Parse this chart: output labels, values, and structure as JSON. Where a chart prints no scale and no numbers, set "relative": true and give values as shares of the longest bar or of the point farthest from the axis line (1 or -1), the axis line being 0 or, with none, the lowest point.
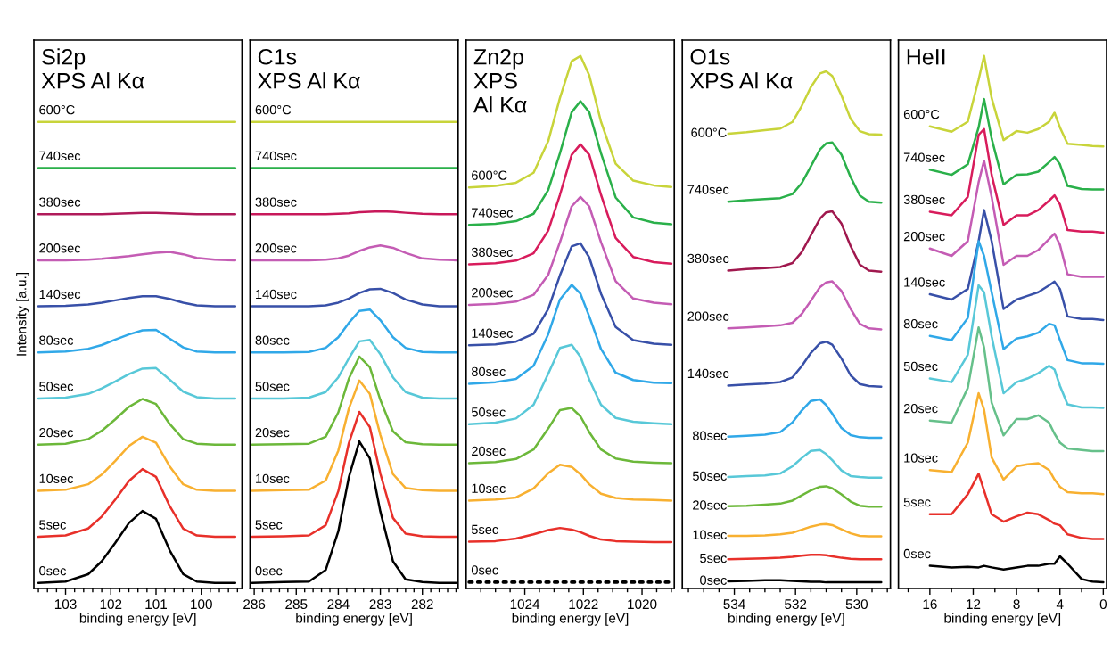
{
  "chart_data": [
    {
      "type": "line",
      "title": "Si2p\nXPS Al Kα",
      "xlabel": "binding energy [eV]",
      "ylabel": "Intensity [a.u.]",
      "relative": true,
      "tick_labels": "x",
      "xlim": [
        103.7,
        99.1
      ],
      "xticks": [
        103,
        102,
        101,
        100,
        {
          "value": 103.6,
          "label": null
        },
        {
          "value": 103.4,
          "label": null
        },
        {
          "value": 103.2,
          "label": null
        },
        {
          "value": 102.8,
          "label": null
        },
        {
          "value": 102.6,
          "label": null
        },
        {
          "value": 102.4,
          "label": null
        },
        {
          "value": 102.2,
          "label": null
        },
        {
          "value": 101.8,
          "label": null
        },
        {
          "value": 101.6,
          "label": null
        },
        {
          "value": 101.4,
          "label": null
        },
        {
          "value": 101.2,
          "label": null
        },
        {
          "value": 100.8,
          "label": null
        },
        {
          "value": 100.6,
          "label": null
        },
        {
          "value": 100.4,
          "label": null
        },
        {
          "value": 100.2,
          "label": null
        },
        {
          "value": 99.8,
          "label": null
        },
        {
          "value": 99.6,
          "label": null
        },
        {
          "value": 99.4,
          "label": null
        },
        {
          "value": 99.2,
          "label": null
        }
      ],
      "x": [
        103.6,
        103.0,
        102.5,
        102.2,
        101.9,
        101.6,
        101.3,
        101.0,
        100.7,
        100.4,
        100.1,
        99.7,
        99.25
      ],
      "series": [
        {
          "name": "600°C",
          "color": "#c8d43a",
          "values": [
            1.0,
            1.0,
            1.0,
            1.0,
            1.0,
            1.0,
            1.0,
            1.0,
            1.0,
            1.0,
            1.0,
            1.0,
            1.0
          ]
        },
        {
          "name": "740sec",
          "color": "#2ab04a",
          "values": [
            0.9,
            0.9,
            0.9,
            0.9,
            0.9,
            0.9,
            0.9,
            0.9,
            0.9,
            0.9,
            0.9,
            0.9,
            0.9
          ]
        },
        {
          "name": "380sec",
          "color": "#b01a5a",
          "values": [
            0.8,
            0.8,
            0.8,
            0.8,
            0.801,
            0.802,
            0.803,
            0.803,
            0.802,
            0.801,
            0.8,
            0.8,
            0.8
          ]
        },
        {
          "name": "200sec",
          "color": "#c45cb4",
          "values": [
            0.7,
            0.7,
            0.701,
            0.703,
            0.706,
            0.709,
            0.713,
            0.716,
            0.718,
            0.713,
            0.705,
            0.701,
            0.7
          ]
        },
        {
          "name": "140sec",
          "color": "#3850a8",
          "values": [
            0.6,
            0.601,
            0.604,
            0.608,
            0.613,
            0.618,
            0.622,
            0.622,
            0.616,
            0.608,
            0.602,
            0.6,
            0.6
          ]
        },
        {
          "name": "80sec",
          "color": "#30a8e8",
          "values": [
            0.5,
            0.502,
            0.508,
            0.516,
            0.528,
            0.539,
            0.548,
            0.549,
            0.53,
            0.511,
            0.502,
            0.5,
            0.5
          ]
        },
        {
          "name": "50sec",
          "color": "#58c8d8",
          "values": [
            0.4,
            0.402,
            0.41,
            0.422,
            0.437,
            0.453,
            0.465,
            0.466,
            0.441,
            0.415,
            0.403,
            0.4,
            0.4
          ]
        },
        {
          "name": "20sec",
          "color": "#6cb83a",
          "values": [
            0.3,
            0.302,
            0.312,
            0.33,
            0.355,
            0.382,
            0.399,
            0.388,
            0.345,
            0.312,
            0.302,
            0.3,
            0.3
          ]
        },
        {
          "name": "10sec",
          "color": "#f8b030",
          "values": [
            0.2,
            0.202,
            0.214,
            0.235,
            0.265,
            0.297,
            0.317,
            0.304,
            0.253,
            0.214,
            0.202,
            0.2,
            0.2
          ]
        },
        {
          "name": "5sec",
          "color": "#e8302a",
          "values": [
            0.1,
            0.103,
            0.118,
            0.144,
            0.181,
            0.221,
            0.247,
            0.23,
            0.167,
            0.118,
            0.103,
            0.1,
            0.1
          ]
        },
        {
          "name": "0sec",
          "color": "#000000",
          "values": [
            0,
            0.003,
            0.019,
            0.047,
            0.087,
            0.13,
            0.156,
            0.139,
            0.071,
            0.019,
            0.003,
            0,
            0
          ]
        }
      ]
    },
    {
      "type": "line",
      "title": "C1s\nXPS Al Kα",
      "xlabel": "binding energy [eV]",
      "relative": true,
      "tick_labels": "x",
      "xlim": [
        286.1,
        281.15
      ],
      "xticks": [
        286,
        285,
        284,
        283,
        282,
        {
          "value": 285.8,
          "label": null
        },
        {
          "value": 285.6,
          "label": null
        },
        {
          "value": 285.4,
          "label": null
        },
        {
          "value": 285.2,
          "label": null
        },
        {
          "value": 284.8,
          "label": null
        },
        {
          "value": 284.6,
          "label": null
        },
        {
          "value": 284.4,
          "label": null
        },
        {
          "value": 284.2,
          "label": null
        },
        {
          "value": 283.8,
          "label": null
        },
        {
          "value": 283.6,
          "label": null
        },
        {
          "value": 283.4,
          "label": null
        },
        {
          "value": 283.2,
          "label": null
        },
        {
          "value": 282.8,
          "label": null
        },
        {
          "value": 282.6,
          "label": null
        },
        {
          "value": 282.4,
          "label": null
        },
        {
          "value": 282.2,
          "label": null
        },
        {
          "value": 281.8,
          "label": null
        },
        {
          "value": 281.6,
          "label": null
        },
        {
          "value": 281.4,
          "label": null
        },
        {
          "value": 281.2,
          "label": null
        }
      ],
      "x": [
        286.05,
        285.3,
        284.7,
        284.3,
        284.0,
        283.75,
        283.5,
        283.25,
        283.0,
        282.7,
        282.4,
        282.0,
        281.6,
        281.2
      ],
      "series": [
        {
          "name": "600°C",
          "color": "#c8d43a",
          "values": [
            1.0,
            1.0,
            1.0,
            1.0,
            1.0,
            1.0,
            1.0,
            1.0,
            1.0,
            1.0,
            1.0,
            1.0,
            1.0,
            1.0
          ]
        },
        {
          "name": "740sec",
          "color": "#2ab04a",
          "values": [
            0.9,
            0.9,
            0.9,
            0.9,
            0.9,
            0.9,
            0.9,
            0.9,
            0.9,
            0.9,
            0.9,
            0.9,
            0.9,
            0.9
          ]
        },
        {
          "name": "380sec",
          "color": "#c8185a",
          "values": [
            0.8,
            0.8,
            0.8,
            0.8,
            0.801,
            0.802,
            0.804,
            0.805,
            0.806,
            0.805,
            0.803,
            0.801,
            0.8,
            0.8
          ]
        },
        {
          "name": "200sec",
          "color": "#c45cb4",
          "values": [
            0.7,
            0.7,
            0.7,
            0.701,
            0.704,
            0.71,
            0.72,
            0.728,
            0.732,
            0.727,
            0.716,
            0.704,
            0.701,
            0.7
          ]
        },
        {
          "name": "140sec",
          "color": "#3850a8",
          "values": [
            0.6,
            0.6,
            0.6,
            0.602,
            0.608,
            0.617,
            0.629,
            0.637,
            0.638,
            0.629,
            0.615,
            0.604,
            0.6,
            0.6
          ]
        },
        {
          "name": "80sec",
          "color": "#30a8e8",
          "values": [
            0.5,
            0.5,
            0.501,
            0.51,
            0.533,
            0.564,
            0.59,
            0.593,
            0.57,
            0.533,
            0.51,
            0.501,
            0.5,
            0.5
          ]
        },
        {
          "name": "50sec",
          "color": "#58c8d8",
          "values": [
            0.4,
            0.4,
            0.402,
            0.414,
            0.446,
            0.487,
            0.524,
            0.527,
            0.496,
            0.446,
            0.414,
            0.402,
            0.4,
            0.4
          ]
        },
        {
          "name": "20sec",
          "color": "#6cb83a",
          "values": [
            0.3,
            0.301,
            0.302,
            0.317,
            0.37,
            0.443,
            0.491,
            0.468,
            0.397,
            0.329,
            0.305,
            0.301,
            0.3,
            0.3
          ]
        },
        {
          "name": "10sec",
          "color": "#f8b030",
          "values": [
            0.2,
            0.201,
            0.202,
            0.222,
            0.287,
            0.378,
            0.439,
            0.41,
            0.321,
            0.236,
            0.206,
            0.201,
            0.2,
            0.2
          ]
        },
        {
          "name": "5sec",
          "color": "#e8302a",
          "values": [
            0.1,
            0.101,
            0.103,
            0.125,
            0.199,
            0.303,
            0.371,
            0.338,
            0.237,
            0.141,
            0.107,
            0.101,
            0.1,
            0.1
          ]
        },
        {
          "name": "0sec",
          "color": "#000000",
          "values": [
            0,
            0.002,
            0.003,
            0.028,
            0.112,
            0.229,
            0.307,
            0.27,
            0.155,
            0.047,
            0.008,
            0.002,
            0,
            0
          ]
        }
      ]
    },
    {
      "type": "line",
      "title": "Zn2p\nXPS\nAl Kα",
      "xlabel": "binding energy [eV]",
      "relative": true,
      "tick_labels": "x",
      "xlim": [
        1026.0,
        1018.9
      ],
      "xticks": [
        1024,
        1022,
        1020,
        {
          "value": 1025.5,
          "label": null
        },
        {
          "value": 1025,
          "label": null
        },
        {
          "value": 1024.5,
          "label": null
        },
        {
          "value": 1023.5,
          "label": null
        },
        {
          "value": 1023,
          "label": null
        },
        {
          "value": 1022.5,
          "label": null
        },
        {
          "value": 1021.5,
          "label": null
        },
        {
          "value": 1021,
          "label": null
        },
        {
          "value": 1020.5,
          "label": null
        },
        {
          "value": 1019.5,
          "label": null
        },
        {
          "value": 1019,
          "label": null
        }
      ],
      "x": [
        1025.9,
        1025.0,
        1024.3,
        1023.7,
        1023.2,
        1022.8,
        1022.4,
        1022.1,
        1021.8,
        1021.4,
        1020.9,
        1020.3,
        1019.6,
        1019.0
      ],
      "series": [
        {
          "name": "600°C",
          "color": "#c8d43a",
          "values": [
            0.75,
            0.753,
            0.759,
            0.778,
            0.838,
            0.92,
            0.99,
            1.0,
            0.963,
            0.875,
            0.795,
            0.763,
            0.754,
            0.751
          ]
        },
        {
          "name": "740sec",
          "color": "#2ab04a",
          "values": [
            0.679,
            0.681,
            0.686,
            0.7,
            0.745,
            0.815,
            0.893,
            0.914,
            0.893,
            0.815,
            0.731,
            0.693,
            0.683,
            0.68
          ]
        },
        {
          "name": "380sec",
          "color": "#d81c5c",
          "values": [
            0.604,
            0.606,
            0.611,
            0.625,
            0.668,
            0.736,
            0.812,
            0.832,
            0.812,
            0.736,
            0.654,
            0.618,
            0.608,
            0.605
          ]
        },
        {
          "name": "200sec",
          "color": "#c45cb4",
          "values": [
            0.527,
            0.529,
            0.533,
            0.546,
            0.584,
            0.646,
            0.714,
            0.732,
            0.714,
            0.646,
            0.572,
            0.539,
            0.531,
            0.528
          ]
        },
        {
          "name": "140sec",
          "color": "#3850a8",
          "values": [
            0.45,
            0.452,
            0.457,
            0.472,
            0.519,
            0.583,
            0.638,
            0.644,
            0.617,
            0.548,
            0.485,
            0.46,
            0.453,
            0.451
          ]
        },
        {
          "name": "80sec",
          "color": "#30a8e8",
          "values": [
            0.377,
            0.38,
            0.386,
            0.411,
            0.471,
            0.537,
            0.565,
            0.548,
            0.505,
            0.443,
            0.398,
            0.384,
            0.379,
            0.378
          ]
        },
        {
          "name": "50sec",
          "color": "#58c8d8",
          "values": [
            0.3,
            0.303,
            0.311,
            0.337,
            0.396,
            0.445,
            0.451,
            0.428,
            0.385,
            0.337,
            0.312,
            0.305,
            0.302,
            0.3
          ]
        },
        {
          "name": "20sec",
          "color": "#6cb83a",
          "values": [
            0.226,
            0.228,
            0.234,
            0.252,
            0.292,
            0.327,
            0.331,
            0.315,
            0.285,
            0.252,
            0.235,
            0.229,
            0.227,
            0.226
          ]
        },
        {
          "name": "10sec",
          "color": "#f8b030",
          "values": [
            0.155,
            0.157,
            0.161,
            0.178,
            0.207,
            0.223,
            0.219,
            0.205,
            0.186,
            0.168,
            0.16,
            0.157,
            0.156,
            0.155
          ]
        },
        {
          "name": "5sec",
          "color": "#e8302a",
          "values": [
            0.077,
            0.078,
            0.083,
            0.091,
            0.099,
            0.103,
            0.1,
            0.095,
            0.088,
            0.081,
            0.078,
            0.077,
            0.076,
            0.076
          ]
        },
        {
          "name": "0sec",
          "color": "#000000",
          "line_style": "dotted",
          "values": [
            0,
            0,
            0,
            0,
            0,
            0,
            0,
            0,
            0,
            0,
            0,
            0,
            0,
            0
          ]
        }
      ]
    },
    {
      "type": "line",
      "title": "O1s\nXPS Al Kα",
      "xlabel": "binding energy [eV]",
      "relative": true,
      "tick_labels": "x",
      "xlim": [
        535.7,
        528.9
      ],
      "xticks": [
        534,
        532,
        530,
        {
          "value": 535.5,
          "label": null
        },
        {
          "value": 535,
          "label": null
        },
        {
          "value": 534.5,
          "label": null
        },
        {
          "value": 533.5,
          "label": null
        },
        {
          "value": 533,
          "label": null
        },
        {
          "value": 532.5,
          "label": null
        },
        {
          "value": 531.5,
          "label": null
        },
        {
          "value": 531,
          "label": null
        },
        {
          "value": 530.5,
          "label": null
        },
        {
          "value": 529.5,
          "label": null
        },
        {
          "value": 529,
          "label": null
        }
      ],
      "x": [
        534.2,
        533.6,
        533.0,
        532.5,
        532.1,
        531.8,
        531.5,
        531.2,
        531.0,
        530.8,
        530.5,
        530.2,
        529.9,
        529.6,
        529.2
      ],
      "series": [
        {
          "name": "600°C",
          "color": "#c8d43a",
          "values": [
            0.878,
            0.881,
            0.885,
            0.888,
            0.901,
            0.932,
            0.969,
            0.996,
            1.0,
            0.991,
            0.953,
            0.907,
            0.883,
            0.877,
            0.876
          ]
        },
        {
          "name": "740sec",
          "color": "#2ab04a",
          "values": [
            0.745,
            0.748,
            0.75,
            0.752,
            0.76,
            0.781,
            0.814,
            0.847,
            0.859,
            0.861,
            0.837,
            0.793,
            0.757,
            0.745,
            0.743
          ]
        },
        {
          "name": "380sec",
          "color": "#a0184e",
          "values": [
            0.61,
            0.613,
            0.615,
            0.617,
            0.625,
            0.646,
            0.679,
            0.712,
            0.724,
            0.726,
            0.702,
            0.658,
            0.622,
            0.61,
            0.608
          ]
        },
        {
          "name": "200sec",
          "color": "#c45cb4",
          "values": [
            0.497,
            0.499,
            0.501,
            0.503,
            0.508,
            0.525,
            0.551,
            0.578,
            0.587,
            0.589,
            0.57,
            0.535,
            0.506,
            0.497,
            0.495
          ]
        },
        {
          "name": "140sec",
          "color": "#3850a8",
          "values": [
            0.385,
            0.387,
            0.389,
            0.392,
            0.401,
            0.423,
            0.449,
            0.468,
            0.471,
            0.465,
            0.438,
            0.405,
            0.388,
            0.384,
            0.383
          ]
        },
        {
          "name": "80sec",
          "color": "#30a8e8",
          "values": [
            0.285,
            0.287,
            0.289,
            0.294,
            0.313,
            0.336,
            0.355,
            0.358,
            0.347,
            0.33,
            0.302,
            0.288,
            0.284,
            0.283,
            0.283
          ]
        },
        {
          "name": "50sec",
          "color": "#58c8d8",
          "values": [
            0.206,
            0.208,
            0.209,
            0.213,
            0.227,
            0.243,
            0.257,
            0.259,
            0.251,
            0.239,
            0.219,
            0.208,
            0.206,
            0.205,
            0.205
          ]
        },
        {
          "name": "20sec",
          "color": "#6cb83a",
          "values": [
            0.149,
            0.15,
            0.152,
            0.154,
            0.16,
            0.17,
            0.18,
            0.187,
            0.188,
            0.184,
            0.172,
            0.158,
            0.15,
            0.148,
            0.148
          ]
        },
        {
          "name": "10sec",
          "color": "#f8b030",
          "values": [
            0.091,
            0.091,
            0.092,
            0.094,
            0.097,
            0.103,
            0.109,
            0.113,
            0.114,
            0.112,
            0.104,
            0.096,
            0.091,
            0.09,
            0.09
          ]
        },
        {
          "name": "5sec",
          "color": "#e8302a",
          "values": [
            0.045,
            0.046,
            0.047,
            0.048,
            0.05,
            0.052,
            0.054,
            0.054,
            0.053,
            0.051,
            0.048,
            0.046,
            0.045,
            0.045,
            0.045
          ]
        },
        {
          "name": "0sec",
          "color": "#000000",
          "values": [
            0.002,
            0.003,
            0.004,
            0.004,
            0.003,
            0.002,
            0.001,
            0.001,
            0,
            0,
            0,
            0,
            0,
            0,
            0
          ]
        }
      ]
    },
    {
      "type": "line",
      "title": "HeII",
      "xlabel": "binding energy [eV]",
      "relative": true,
      "tick_labels": "x",
      "xlim": [
        18.9,
        -0.3
      ],
      "xticks": [
        16,
        12,
        8,
        4,
        0,
        {
          "value": 18,
          "label": null
        },
        {
          "value": 14,
          "label": null
        },
        {
          "value": 10,
          "label": null
        },
        {
          "value": 6,
          "label": null
        },
        {
          "value": 2,
          "label": null
        }
      ],
      "x": [
        16,
        14,
        12.5,
        11.5,
        11.0,
        10.3,
        9.2,
        8,
        7,
        6,
        5,
        4.5,
        4,
        3.3,
        2,
        1,
        0
      ],
      "series": [
        {
          "name": "600°C",
          "color": "#c8d43a",
          "values": [
            0.866,
            0.856,
            0.875,
            0.955,
            1.0,
            0.92,
            0.84,
            0.857,
            0.854,
            0.861,
            0.875,
            0.892,
            0.864,
            0.833,
            0.831,
            0.829,
            0.828
          ]
        },
        {
          "name": "740sec",
          "color": "#2ab04a",
          "values": [
            0.784,
            0.774,
            0.794,
            0.864,
            0.918,
            0.843,
            0.756,
            0.774,
            0.775,
            0.78,
            0.798,
            0.808,
            0.794,
            0.753,
            0.747,
            0.746,
            0.746
          ]
        },
        {
          "name": "380sec",
          "color": "#d81c5c",
          "values": [
            0.704,
            0.697,
            0.732,
            0.85,
            0.861,
            0.774,
            0.679,
            0.697,
            0.697,
            0.707,
            0.725,
            0.735,
            0.718,
            0.669,
            0.666,
            0.666,
            0.664
          ]
        },
        {
          "name": "200sec",
          "color": "#c45cb4",
          "values": [
            0.634,
            0.62,
            0.648,
            0.76,
            0.801,
            0.732,
            0.603,
            0.62,
            0.62,
            0.631,
            0.652,
            0.662,
            0.641,
            0.585,
            0.58,
            0.58,
            0.58
          ]
        },
        {
          "name": "140sec",
          "color": "#3850a8",
          "values": [
            0.547,
            0.537,
            0.557,
            0.648,
            0.707,
            0.648,
            0.519,
            0.537,
            0.544,
            0.551,
            0.564,
            0.571,
            0.557,
            0.505,
            0.5,
            0.5,
            0.498
          ]
        },
        {
          "name": "80sec",
          "color": "#30a8e8",
          "values": [
            0.468,
            0.46,
            0.502,
            0.648,
            0.62,
            0.551,
            0.443,
            0.463,
            0.467,
            0.474,
            0.491,
            0.488,
            0.46,
            0.422,
            0.416,
            0.416,
            0.415
          ]
        },
        {
          "name": "50sec",
          "color": "#58c8d8",
          "values": [
            0.387,
            0.38,
            0.432,
            0.564,
            0.551,
            0.467,
            0.359,
            0.38,
            0.387,
            0.397,
            0.411,
            0.404,
            0.373,
            0.338,
            0.332,
            0.332,
            0.331
          ]
        },
        {
          "name": "20sec",
          "color": "#66c08a",
          "values": [
            0.307,
            0.303,
            0.369,
            0.484,
            0.446,
            0.341,
            0.279,
            0.31,
            0.31,
            0.317,
            0.303,
            0.282,
            0.265,
            0.254,
            0.251,
            0.249,
            0.249
          ]
        },
        {
          "name": "10sec",
          "color": "#f8b030",
          "values": [
            0.213,
            0.209,
            0.265,
            0.359,
            0.328,
            0.237,
            0.195,
            0.22,
            0.224,
            0.226,
            0.213,
            0.195,
            0.181,
            0.171,
            0.169,
            0.169,
            0.167
          ]
        },
        {
          "name": "5sec",
          "color": "#e8302a",
          "values": [
            0.129,
            0.129,
            0.167,
            0.206,
            0.174,
            0.129,
            0.115,
            0.125,
            0.132,
            0.129,
            0.118,
            0.111,
            0.108,
            0.091,
            0.084,
            0.082,
            0.082
          ]
        },
        {
          "name": "0sec",
          "color": "#000000",
          "values": [
            0.031,
            0.028,
            0.029,
            0.028,
            0.031,
            0.028,
            0.024,
            0.028,
            0.031,
            0.031,
            0.035,
            0.035,
            0.049,
            0.035,
            0.006,
            0.001,
            0
          ]
        }
      ]
    }
  ]
}
